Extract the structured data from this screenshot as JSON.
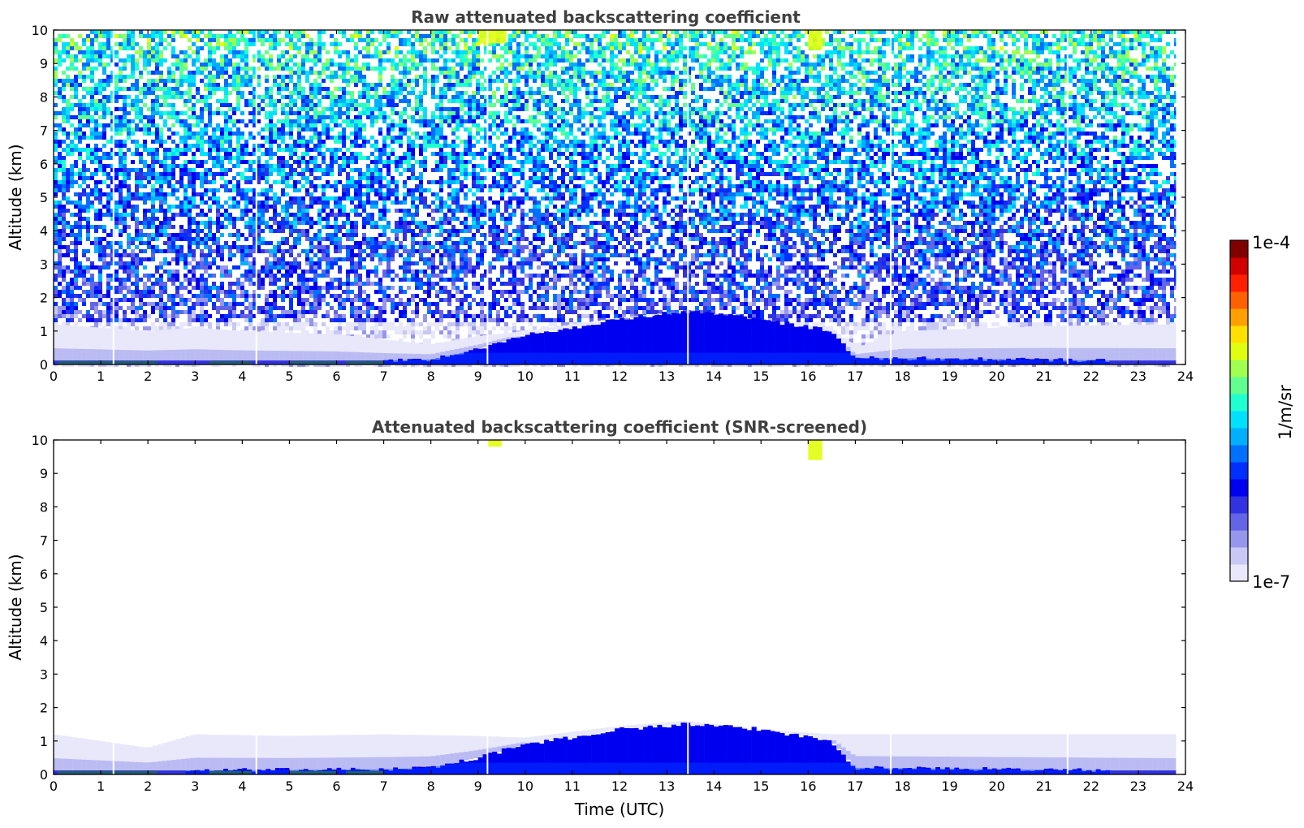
{
  "chart_data": [
    {
      "type": "heatmap",
      "title": "Raw attenuated backscattering coefficient",
      "xlabel": "",
      "ylabel": "Altitude (km)",
      "xlim": [
        0,
        24
      ],
      "ylim": [
        0,
        10
      ],
      "xticks": [
        "0",
        "1",
        "2",
        "3",
        "4",
        "5",
        "6",
        "7",
        "8",
        "9",
        "10",
        "11",
        "12",
        "13",
        "14",
        "15",
        "16",
        "17",
        "18",
        "19",
        "20",
        "21",
        "22",
        "23",
        "24"
      ],
      "yticks": [
        "0",
        "1",
        "2",
        "3",
        "4",
        "5",
        "6",
        "7",
        "8",
        "9",
        "10"
      ],
      "data_extent_hours": [
        0,
        23.8
      ],
      "data_gaps_hours": [
        1.27,
        4.3,
        9.2,
        13.45,
        17.75,
        21.5
      ],
      "layers": {
        "aerosol_layer_top_km": [
          [
            0,
            1.2
          ],
          [
            2,
            1.0
          ],
          [
            3,
            1.1
          ],
          [
            4,
            1.0
          ],
          [
            6,
            0.9
          ],
          [
            8,
            0.6
          ],
          [
            9,
            0.85
          ],
          [
            10,
            1.0
          ],
          [
            12,
            1.4
          ],
          [
            13.4,
            1.6
          ],
          [
            15,
            1.35
          ],
          [
            16.5,
            1.1
          ],
          [
            17,
            0.5
          ],
          [
            18,
            1.0
          ],
          [
            21,
            1.15
          ],
          [
            23.8,
            1.2
          ]
        ],
        "dense_layer_top_km": [
          [
            0,
            0.1
          ],
          [
            7,
            0.12
          ],
          [
            8,
            0.15
          ],
          [
            9,
            0.45
          ],
          [
            10,
            0.9
          ],
          [
            11,
            1.1
          ],
          [
            12,
            1.35
          ],
          [
            13.4,
            1.6
          ],
          [
            15,
            1.35
          ],
          [
            16.5,
            1.0
          ],
          [
            17,
            0.2
          ],
          [
            23.8,
            0.1
          ]
        ]
      },
      "noise_upper_levels": true,
      "high_signal_patches": [
        {
          "x_hours": [
            9.0,
            9.6
          ],
          "y_km": [
            9.6,
            10
          ]
        },
        {
          "x_hours": [
            16.0,
            16.3
          ],
          "y_km": [
            9.4,
            10
          ]
        }
      ]
    },
    {
      "type": "heatmap",
      "title": "Attenuated backscattering coefficient (SNR-screened)",
      "xlabel": "Time (UTC)",
      "ylabel": "Altitude (km)",
      "xlim": [
        0,
        24
      ],
      "ylim": [
        0,
        10
      ],
      "xticks": [
        "0",
        "1",
        "2",
        "3",
        "4",
        "5",
        "6",
        "7",
        "8",
        "9",
        "10",
        "11",
        "12",
        "13",
        "14",
        "15",
        "16",
        "17",
        "18",
        "19",
        "20",
        "21",
        "22",
        "23",
        "24"
      ],
      "yticks": [
        "0",
        "1",
        "2",
        "3",
        "4",
        "5",
        "6",
        "7",
        "8",
        "9",
        "10"
      ],
      "data_extent_hours": [
        0,
        23.8
      ],
      "data_gaps_hours": [
        1.27,
        4.3,
        9.2,
        13.45,
        17.75,
        21.5
      ],
      "layers": {
        "aerosol_layer_top_km": [
          [
            0,
            1.2
          ],
          [
            2,
            0.8
          ],
          [
            2.5,
            1.0
          ],
          [
            3,
            1.2
          ],
          [
            5,
            1.15
          ],
          [
            7,
            1.2
          ],
          [
            9,
            1.15
          ],
          [
            10,
            1.1
          ],
          [
            12,
            1.45
          ],
          [
            13.4,
            1.6
          ],
          [
            15,
            1.35
          ],
          [
            16.5,
            1.2
          ],
          [
            18,
            1.2
          ],
          [
            21,
            1.2
          ],
          [
            23.8,
            1.2
          ]
        ],
        "dense_layer_top_km": [
          [
            0,
            0.1
          ],
          [
            7,
            0.15
          ],
          [
            8,
            0.2
          ],
          [
            9,
            0.5
          ],
          [
            10,
            0.9
          ],
          [
            11,
            1.1
          ],
          [
            12,
            1.35
          ],
          [
            13.4,
            1.5
          ],
          [
            15,
            1.35
          ],
          [
            16.5,
            1.0
          ],
          [
            17,
            0.2
          ],
          [
            23.8,
            0.1
          ]
        ]
      },
      "noise_upper_levels": false,
      "high_signal_patches": [
        {
          "x_hours": [
            9.2,
            9.5
          ],
          "y_km": [
            9.8,
            10
          ]
        },
        {
          "x_hours": [
            16.0,
            16.3
          ],
          "y_km": [
            9.4,
            10
          ]
        }
      ]
    }
  ],
  "colorbar": {
    "label": "1/m/sr",
    "max_label": "1e-4",
    "min_label": "1e-7",
    "scale": "log",
    "colormap": [
      "#e8e8fa",
      "#c8c8f4",
      "#9696ec",
      "#6464e6",
      "#3232e0",
      "#0000f0",
      "#0030ff",
      "#0070ff",
      "#00b0ff",
      "#00e0ff",
      "#20ffd0",
      "#60ff90",
      "#a0ff50",
      "#e0ff10",
      "#ffe000",
      "#ffa000",
      "#ff6000",
      "#ff2000",
      "#d00000",
      "#800000"
    ]
  },
  "colors": {
    "background": "#ffffff",
    "axis": "#000000",
    "title": "#404040"
  }
}
